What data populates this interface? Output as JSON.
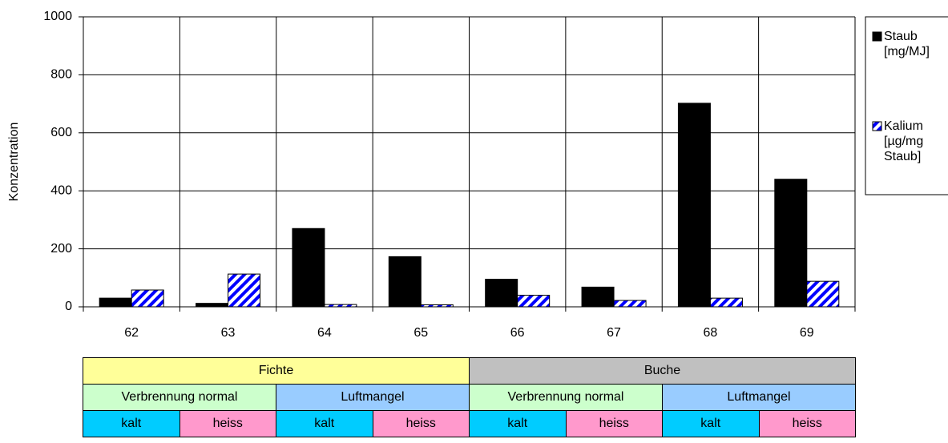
{
  "chart_data": {
    "type": "bar",
    "y_label": "Konzentration",
    "categories": [
      "62",
      "63",
      "64",
      "65",
      "66",
      "67",
      "68",
      "69"
    ],
    "series": [
      {
        "name": "Staub [mg/MJ]",
        "color": "#000000",
        "values": [
          30,
          12,
          270,
          173,
          95,
          68,
          702,
          440
        ]
      },
      {
        "name": "Kalium [µg/mg Staub]",
        "color": "#0000ff",
        "pattern": "diagonal",
        "values": [
          58,
          113,
          8,
          7,
          40,
          22,
          30,
          88
        ]
      }
    ],
    "ylim": [
      0,
      1000
    ],
    "yticks": [
      0,
      200,
      400,
      600,
      800,
      1000
    ],
    "grid": true,
    "legend": "right"
  },
  "table": {
    "rows": [
      [
        "Fichte",
        "Buche"
      ],
      [
        "Verbrennung normal",
        "Luftmangel",
        "Verbrennung normal",
        "Luftmangel"
      ],
      [
        "kalt",
        "heiss",
        "kalt",
        "heiss",
        "kalt",
        "heiss",
        "kalt",
        "heiss"
      ]
    ]
  }
}
